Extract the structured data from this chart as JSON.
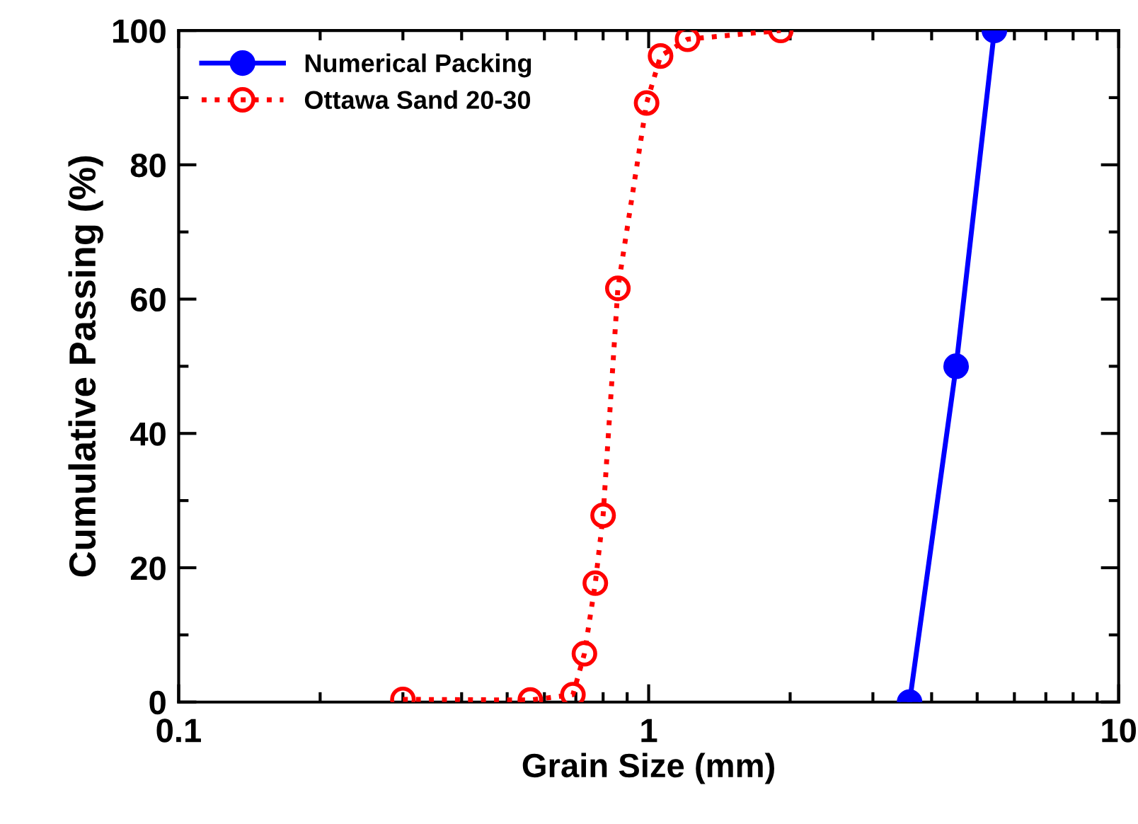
{
  "chart_data": {
    "type": "line",
    "xlabel": "Grain Size (mm)",
    "ylabel": "Cumulative Passing (%)",
    "log": "x",
    "xlim": [
      0.1,
      10
    ],
    "xticks": [
      0.1,
      1,
      10
    ],
    "ylim": [
      0,
      100
    ],
    "yticks": [
      0,
      20,
      40,
      60,
      80,
      100
    ],
    "grid": false,
    "legend": "top left",
    "series": [
      {
        "name": "Numerical Packing",
        "color": "#0000ff",
        "marker": "circle",
        "line_style": "solid",
        "x": [
          3.59,
          4.51,
          5.44
        ],
        "values": [
          0,
          50,
          100
        ]
      },
      {
        "name": "Ottawa Sand 20-30",
        "color": "#ff0000",
        "marker": "circle",
        "line_style": "dotted",
        "x": [
          0.3,
          0.56,
          0.69,
          0.73,
          0.77,
          0.8,
          0.86,
          0.99,
          1.06,
          1.21,
          1.91
        ],
        "values": [
          0.4,
          0.3,
          1.1,
          7.2,
          17.7,
          27.8,
          61.6,
          89.2,
          96.2,
          98.7,
          100
        ]
      }
    ]
  }
}
